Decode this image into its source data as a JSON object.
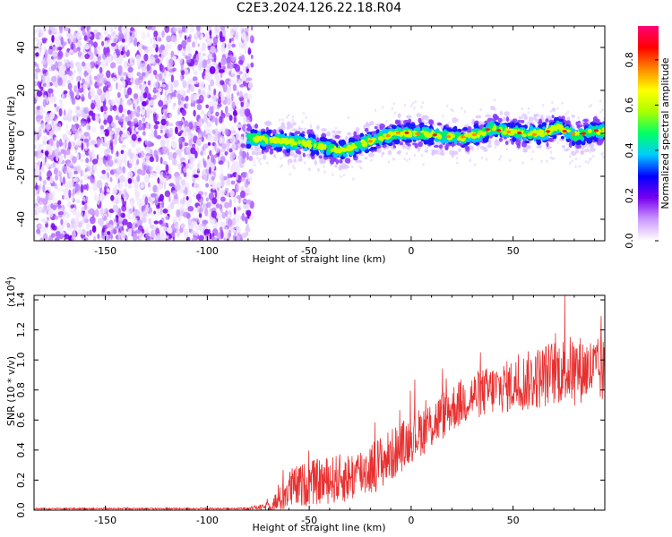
{
  "title": "C2E3.2024.126.22.18.R04",
  "chart_data": [
    {
      "type": "heatmap",
      "xlabel": "Height of straight line (km)",
      "ylabel": "Frequency (Hz)",
      "xlim": [
        -185,
        95
      ],
      "ylim": [
        -50,
        50
      ],
      "xticks": [
        -150,
        -100,
        -50,
        0,
        50
      ],
      "yticks": [
        -40,
        -20,
        0,
        20,
        40
      ],
      "noise_region_x": [
        -185,
        -80
      ],
      "signal_onset_x": -80,
      "ridge": {
        "x": [
          -80,
          -70,
          -60,
          -50,
          -40,
          -33,
          -25,
          -15,
          -5,
          5,
          15,
          25,
          35,
          40,
          45,
          55,
          65,
          72,
          80,
          90,
          95
        ],
        "freq": [
          -2,
          -3,
          -4,
          -5,
          -7,
          -8,
          -5,
          -2,
          0,
          0,
          -1,
          -2,
          0,
          3,
          1,
          0,
          0,
          3,
          -1,
          1,
          1
        ]
      },
      "colorbar": {
        "label": "Normalized spectral amplitude",
        "range": [
          0.0,
          0.95
        ],
        "ticks": [
          0.0,
          0.2,
          0.4,
          0.6,
          0.8
        ],
        "colors": [
          "#ffffff",
          "#cc99ff",
          "#7700ee",
          "#0000ff",
          "#00ccff",
          "#00ff66",
          "#aaff00",
          "#ffff00",
          "#ff8800",
          "#ff0000",
          "#ff0077"
        ]
      }
    },
    {
      "type": "line",
      "xlabel": "Height of straight line (km)",
      "ylabel": "SNR (10 * v/v)",
      "multiplier": "(x10",
      "multiplier_exp": "4",
      "multiplier_close": ")",
      "xlim": [
        -185,
        95
      ],
      "ylim": [
        0.0,
        1.43
      ],
      "xticks": [
        -150,
        -100,
        -50,
        0,
        50
      ],
      "yticks": [
        "0.0",
        "0.2",
        "0.4",
        "0.6",
        "0.8",
        "1.0",
        "1.2",
        "1.4"
      ],
      "color": "#e83030",
      "envelope": {
        "x": [
          -185,
          -85,
          -72,
          -65,
          -60,
          -50,
          -40,
          -30,
          -20,
          -10,
          0,
          10,
          20,
          30,
          40,
          50,
          60,
          70,
          80,
          90,
          95
        ],
        "mean": [
          0.01,
          0.01,
          0.02,
          0.06,
          0.14,
          0.18,
          0.2,
          0.22,
          0.28,
          0.36,
          0.48,
          0.57,
          0.68,
          0.76,
          0.8,
          0.83,
          0.87,
          0.92,
          0.94,
          0.93,
          0.92
        ],
        "spread": [
          0.005,
          0.005,
          0.02,
          0.08,
          0.14,
          0.15,
          0.16,
          0.17,
          0.18,
          0.18,
          0.16,
          0.17,
          0.16,
          0.16,
          0.17,
          0.18,
          0.21,
          0.22,
          0.23,
          0.22,
          0.22
        ]
      }
    }
  ]
}
